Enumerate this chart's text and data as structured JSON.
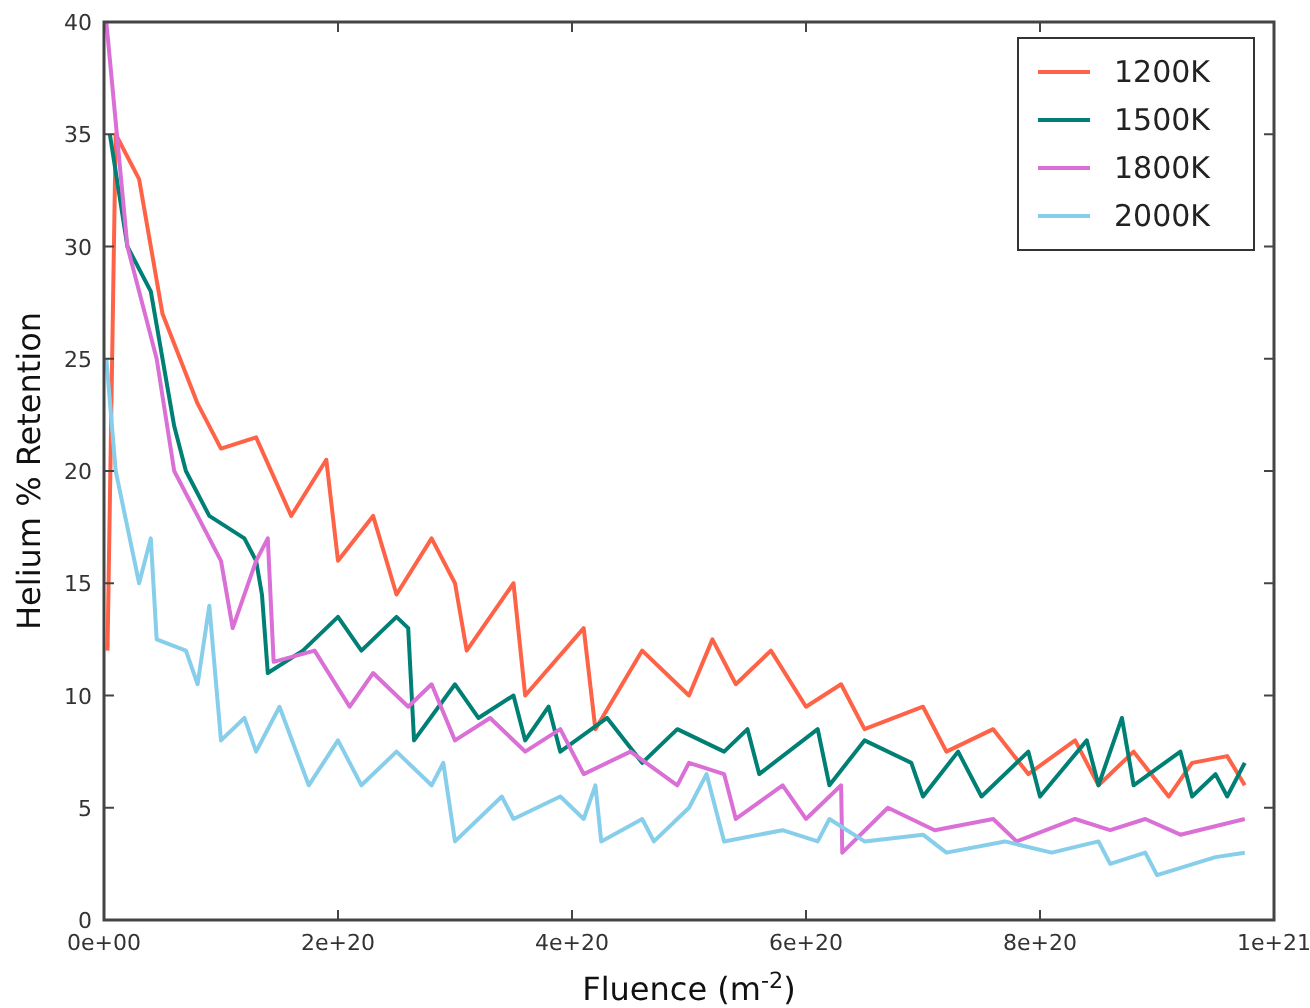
{
  "chart_data": {
    "type": "line",
    "xlabel": "Fluence (m$^{-2}$)",
    "ylabel": "Helium % Retention",
    "xlim": [
      0,
      1e+21
    ],
    "xticks": [
      {
        "value": 0,
        "label": "0e+00"
      },
      {
        "value": 2e+20,
        "label": "2e+20"
      },
      {
        "value": 4e+20,
        "label": "4e+20"
      },
      {
        "value": 6e+20,
        "label": "6e+20"
      },
      {
        "value": 8e+20,
        "label": "8e+20"
      },
      {
        "value": 1e+21,
        "label": "1e+21"
      }
    ],
    "ylim": [
      0,
      40
    ],
    "yticks": [
      0,
      5,
      10,
      15,
      20,
      25,
      30,
      35,
      40
    ],
    "grid": false,
    "legend": "top right",
    "marker": "none",
    "line_style": "solid",
    "series": [
      {
        "name": "1200K",
        "color": "#ff6347",
        "x": [
          3e+18,
          1e+19,
          3e+19,
          5e+19,
          8e+19,
          1e+20,
          1.3e+20,
          1.6e+20,
          1.9e+20,
          2e+20,
          2.3e+20,
          2.5e+20,
          2.8e+20,
          3e+20,
          3.1e+20,
          3.5e+20,
          3.6e+20,
          4.1e+20,
          4.2e+20,
          4.6e+20,
          5e+20,
          5.2e+20,
          5.4e+20,
          5.7e+20,
          6e+20,
          6.3e+20,
          6.5e+20,
          7e+20,
          7.2e+20,
          7.6e+20,
          7.9e+20,
          8.3e+20,
          8.5e+20,
          8.8e+20,
          9.1e+20,
          9.3e+20,
          9.6e+20,
          9.75e+20
        ],
        "values": [
          12,
          35,
          33,
          27,
          23,
          21,
          21.5,
          18,
          20.5,
          16,
          18,
          14.5,
          17,
          15,
          12,
          15,
          10,
          13,
          8.5,
          12,
          10,
          12.5,
          10.5,
          12,
          9.5,
          10.5,
          8.5,
          9.5,
          7.5,
          8.5,
          6.5,
          8,
          6,
          7.5,
          5.5,
          7,
          7.3,
          6
        ]
      },
      {
        "name": "1500K",
        "color": "#008075",
        "x": [
          5e+18,
          2e+19,
          4e+19,
          6e+19,
          7e+19,
          9e+19,
          1.2e+20,
          1.3e+20,
          1.35e+20,
          1.4e+20,
          1.7e+20,
          2e+20,
          2.2e+20,
          2.5e+20,
          2.6e+20,
          2.65e+20,
          3e+20,
          3.2e+20,
          3.5e+20,
          3.6e+20,
          3.8e+20,
          3.9e+20,
          4.3e+20,
          4.6e+20,
          4.9e+20,
          5.3e+20,
          5.5e+20,
          5.6e+20,
          6.1e+20,
          6.2e+20,
          6.5e+20,
          6.9e+20,
          7e+20,
          7.3e+20,
          7.5e+20,
          7.9e+20,
          8e+20,
          8.4e+20,
          8.5e+20,
          8.7e+20,
          8.8e+20,
          9.2e+20,
          9.3e+20,
          9.5e+20,
          9.6e+20,
          9.75e+20
        ],
        "values": [
          35,
          30,
          28,
          22,
          20,
          18,
          17,
          16,
          14.5,
          11,
          12,
          13.5,
          12,
          13.5,
          13,
          8,
          10.5,
          9,
          10,
          8,
          9.5,
          7.5,
          9,
          7,
          8.5,
          7.5,
          8.5,
          6.5,
          8.5,
          6,
          8,
          7,
          5.5,
          7.5,
          5.5,
          7.5,
          5.5,
          8,
          6,
          9,
          6,
          7.5,
          5.5,
          6.5,
          5.5,
          7
        ]
      },
      {
        "name": "1800K",
        "color": "#da70d6",
        "x": [
          2e+18,
          2e+19,
          3.5e+19,
          4.5e+19,
          6e+19,
          8e+19,
          1e+20,
          1.1e+20,
          1.3e+20,
          1.4e+20,
          1.45e+20,
          1.8e+20,
          2.1e+20,
          2.3e+20,
          2.6e+20,
          2.8e+20,
          3e+20,
          3.3e+20,
          3.6e+20,
          3.9e+20,
          4.1e+20,
          4.5e+20,
          4.9e+20,
          5e+20,
          5.3e+20,
          5.4e+20,
          5.8e+20,
          6e+20,
          6.3e+20,
          6.31e+20,
          6.7e+20,
          7.1e+20,
          7.6e+20,
          7.8e+20,
          8.3e+20,
          8.6e+20,
          8.9e+20,
          9.2e+20,
          9.75e+20
        ],
        "values": [
          40,
          30,
          27,
          25,
          20,
          18,
          16,
          13,
          16,
          17,
          11.5,
          12,
          9.5,
          11,
          9.5,
          10.5,
          8,
          9,
          7.5,
          8.5,
          6.5,
          7.5,
          6,
          7,
          6.5,
          4.5,
          6,
          4.5,
          6,
          3,
          5,
          4,
          4.5,
          3.5,
          4.5,
          4,
          4.5,
          3.8,
          4.5
        ]
      },
      {
        "name": "2000K",
        "color": "#87ceeb",
        "x": [
          2e+18,
          1e+19,
          3e+19,
          4e+19,
          4.5e+19,
          7e+19,
          8e+19,
          9e+19,
          1e+20,
          1.2e+20,
          1.3e+20,
          1.5e+20,
          1.75e+20,
          2e+20,
          2.2e+20,
          2.5e+20,
          2.8e+20,
          2.9e+20,
          3e+20,
          3.4e+20,
          3.5e+20,
          3.9e+20,
          4.1e+20,
          4.2e+20,
          4.25e+20,
          4.6e+20,
          4.7e+20,
          5e+20,
          5.15e+20,
          5.3e+20,
          5.8e+20,
          6.1e+20,
          6.2e+20,
          6.5e+20,
          7e+20,
          7.2e+20,
          7.7e+20,
          8.1e+20,
          8.5e+20,
          8.6e+20,
          8.9e+20,
          9e+20,
          9.5e+20,
          9.75e+20
        ],
        "values": [
          25,
          20,
          15,
          17,
          12.5,
          12,
          10.5,
          14,
          8,
          9,
          7.5,
          9.5,
          6,
          8,
          6,
          7.5,
          6,
          7,
          3.5,
          5.5,
          4.5,
          5.5,
          4.5,
          6,
          3.5,
          4.5,
          3.5,
          5,
          6.5,
          3.5,
          4,
          3.5,
          4.5,
          3.5,
          3.8,
          3,
          3.5,
          3,
          3.5,
          2.5,
          3,
          2,
          2.8,
          3
        ]
      }
    ]
  }
}
